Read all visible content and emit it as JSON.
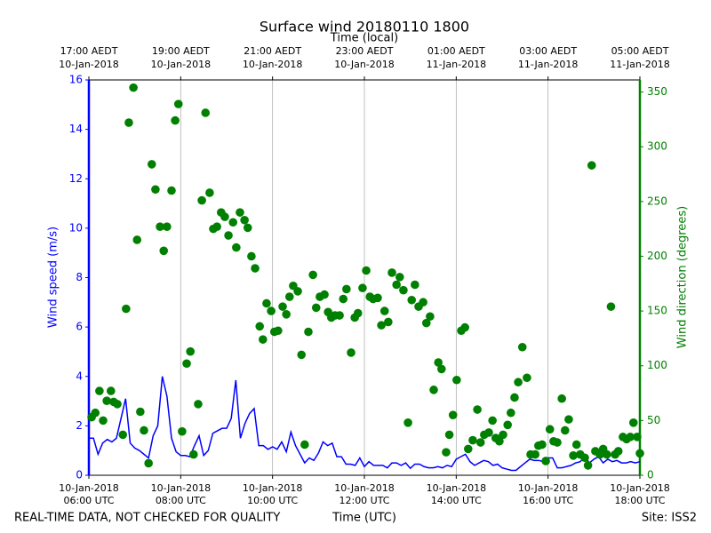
{
  "chart_data": {
    "type": "line",
    "title": "Surface wind 20180110 1800",
    "xlabel": "Time (UTC)",
    "x2label": "Time (local)",
    "ylabel": "Wind speed (m/s)",
    "y2label": "Wind direction (degrees)",
    "xlim": [
      6,
      18
    ],
    "xticks": [
      {
        "value": 6,
        "label": [
          "10-Jan-2018",
          "06:00 UTC"
        ]
      },
      {
        "value": 8,
        "label": [
          "10-Jan-2018",
          "08:00 UTC"
        ]
      },
      {
        "value": 10,
        "label": [
          "10-Jan-2018",
          "10:00 UTC"
        ]
      },
      {
        "value": 12,
        "label": [
          "10-Jan-2018",
          "12:00 UTC"
        ]
      },
      {
        "value": 14,
        "label": [
          "10-Jan-2018",
          "14:00 UTC"
        ]
      },
      {
        "value": 16,
        "label": [
          "10-Jan-2018",
          "16:00 UTC"
        ]
      },
      {
        "value": 18,
        "label": [
          "10-Jan-2018",
          "18:00 UTC"
        ]
      }
    ],
    "x2ticks": [
      {
        "value": 6,
        "label": [
          "17:00 AEDT",
          "10-Jan-2018"
        ]
      },
      {
        "value": 8,
        "label": [
          "19:00 AEDT",
          "10-Jan-2018"
        ]
      },
      {
        "value": 10,
        "label": [
          "21:00 AEDT",
          "10-Jan-2018"
        ]
      },
      {
        "value": 12,
        "label": [
          "23:00 AEDT",
          "10-Jan-2018"
        ]
      },
      {
        "value": 14,
        "label": [
          "01:00 AEDT",
          "11-Jan-2018"
        ]
      },
      {
        "value": 16,
        "label": [
          "03:00 AEDT",
          "11-Jan-2018"
        ]
      },
      {
        "value": 18,
        "label": [
          "05:00 AEDT",
          "11-Jan-2018"
        ]
      }
    ],
    "ylim": [
      0,
      16
    ],
    "yticks": [
      0,
      2,
      4,
      6,
      8,
      10,
      12,
      14,
      16
    ],
    "y2lim": [
      0,
      361
    ],
    "y2ticks": [
      0,
      50,
      100,
      150,
      200,
      250,
      300,
      350
    ],
    "grid": "x",
    "series": [
      {
        "type": "line",
        "color": "#0000ff",
        "x": [
          6.0,
          6.1,
          6.2,
          6.3,
          6.4,
          6.5,
          6.6,
          6.7,
          6.8,
          6.9,
          7.0,
          7.1,
          7.2,
          7.3,
          7.4,
          7.5,
          7.6,
          7.7,
          7.8,
          7.9,
          8.0,
          8.1,
          8.2,
          8.3,
          8.4,
          8.5,
          8.6,
          8.7,
          8.8,
          8.9,
          9.0,
          9.1,
          9.2,
          9.3,
          9.4,
          9.5,
          9.6,
          9.7,
          9.8,
          9.9,
          10.0,
          10.1,
          10.2,
          10.3,
          10.4,
          10.5,
          10.6,
          10.7,
          10.8,
          10.9,
          11.0,
          11.1,
          11.2,
          11.3,
          11.4,
          11.5,
          11.6,
          11.7,
          11.8,
          11.9,
          12.0,
          12.1,
          12.2,
          12.3,
          12.4,
          12.5,
          12.6,
          12.7,
          12.8,
          12.9,
          13.0,
          13.1,
          13.2,
          13.3,
          13.4,
          13.5,
          13.6,
          13.7,
          13.8,
          13.9,
          14.0,
          14.1,
          14.2,
          14.3,
          14.4,
          14.5,
          14.6,
          14.7,
          14.8,
          14.9,
          15.0,
          15.1,
          15.2,
          15.3,
          15.4,
          15.5,
          15.6,
          15.7,
          15.8,
          15.9,
          16.0,
          16.1,
          16.2,
          16.3,
          16.4,
          16.5,
          16.6,
          16.7,
          16.8,
          16.9,
          17.0,
          17.1,
          17.2,
          17.3,
          17.4,
          17.5,
          17.6,
          17.7,
          17.8,
          17.9,
          18.0
        ],
        "values": [
          1.5,
          1.5,
          0.85,
          1.3,
          1.45,
          1.35,
          1.5,
          2.3,
          3.1,
          1.3,
          1.1,
          1.0,
          0.85,
          0.7,
          1.6,
          2.0,
          4.0,
          3.2,
          1.5,
          0.95,
          0.8,
          0.8,
          0.75,
          1.2,
          1.6,
          0.8,
          1.0,
          1.7,
          1.8,
          1.9,
          1.9,
          2.3,
          3.85,
          1.5,
          2.1,
          2.5,
          2.7,
          1.2,
          1.2,
          1.05,
          1.15,
          1.05,
          1.35,
          0.95,
          1.75,
          1.2,
          0.85,
          0.5,
          0.7,
          0.6,
          0.9,
          1.35,
          1.2,
          1.3,
          0.75,
          0.75,
          0.45,
          0.45,
          0.4,
          0.7,
          0.35,
          0.55,
          0.4,
          0.4,
          0.4,
          0.3,
          0.5,
          0.5,
          0.4,
          0.5,
          0.28,
          0.45,
          0.45,
          0.35,
          0.3,
          0.3,
          0.35,
          0.3,
          0.4,
          0.35,
          0.65,
          0.75,
          0.85,
          0.55,
          0.4,
          0.5,
          0.6,
          0.55,
          0.4,
          0.45,
          0.3,
          0.25,
          0.2,
          0.2,
          0.35,
          0.5,
          0.65,
          0.6,
          0.6,
          0.55,
          0.7,
          0.7,
          0.3,
          0.3,
          0.35,
          0.4,
          0.5,
          0.55,
          0.75,
          0.5,
          0.65,
          0.75,
          0.5,
          0.65,
          0.55,
          0.6,
          0.5,
          0.5,
          0.55,
          0.5,
          0.55
        ]
      },
      {
        "type": "scatter",
        "color": "#008000",
        "axis": "y2",
        "x": [
          6.06,
          6.14,
          6.23,
          6.31,
          6.39,
          6.48,
          6.54,
          6.62,
          6.74,
          6.81,
          6.87,
          6.97,
          7.05,
          7.12,
          7.2,
          7.3,
          7.37,
          7.45,
          7.55,
          7.63,
          7.7,
          7.8,
          7.88,
          7.95,
          8.03,
          8.13,
          8.21,
          8.28,
          8.38,
          8.46,
          8.54,
          8.63,
          8.71,
          8.79,
          8.88,
          8.96,
          9.04,
          9.14,
          9.21,
          9.29,
          9.39,
          9.46,
          9.54,
          9.62,
          9.72,
          9.79,
          9.87,
          9.97,
          10.04,
          10.12,
          10.22,
          10.3,
          10.37,
          10.45,
          10.55,
          10.63,
          10.7,
          10.78,
          10.88,
          10.95,
          11.03,
          11.13,
          11.21,
          11.28,
          11.36,
          11.46,
          11.54,
          11.61,
          11.71,
          11.79,
          11.86,
          11.96,
          12.04,
          12.12,
          12.19,
          12.29,
          12.37,
          12.44,
          12.52,
          12.6,
          12.7,
          12.77,
          12.85,
          12.95,
          13.03,
          13.1,
          13.18,
          13.28,
          13.35,
          13.43,
          13.51,
          13.61,
          13.68,
          13.78,
          13.85,
          13.93,
          14.01,
          14.11,
          14.19,
          14.26,
          14.36,
          14.46,
          14.53,
          14.61,
          14.71,
          14.79,
          14.86,
          14.94,
          15.02,
          15.12,
          15.19,
          15.27,
          15.35,
          15.44,
          15.54,
          15.62,
          15.72,
          15.79,
          15.87,
          15.95,
          16.04,
          16.12,
          16.2,
          16.3,
          16.37,
          16.45,
          16.55,
          16.62,
          16.7,
          16.8,
          16.87,
          16.95,
          17.03,
          17.13,
          17.2,
          17.28,
          17.37,
          17.46,
          17.53,
          17.63,
          17.71,
          17.79,
          17.86,
          17.94,
          18.0
        ],
        "values": [
          53,
          57,
          77,
          50,
          68,
          77,
          67,
          65,
          37,
          152,
          322,
          354,
          215,
          58,
          41,
          11,
          284,
          261,
          227,
          205,
          227,
          260,
          324,
          339,
          40,
          102,
          113,
          19,
          65,
          251,
          331,
          258,
          225,
          227,
          240,
          236,
          219,
          231,
          208,
          240,
          233,
          226,
          200,
          189,
          136,
          124,
          157,
          150,
          131,
          132,
          154,
          147,
          163,
          173,
          168,
          110,
          28,
          131,
          183,
          153,
          163,
          165,
          149,
          144,
          146,
          146,
          161,
          170,
          112,
          144,
          148,
          171,
          187,
          163,
          161,
          162,
          137,
          150,
          140,
          185,
          174,
          181,
          169,
          48,
          160,
          174,
          154,
          158,
          139,
          145,
          78,
          103,
          97,
          21,
          37,
          55,
          87,
          132,
          135,
          24,
          32,
          60,
          30,
          37,
          39,
          50,
          34,
          31,
          37,
          46,
          57,
          71,
          85,
          117,
          89,
          19,
          19,
          27,
          28,
          13,
          42,
          31,
          30,
          70,
          41,
          51,
          18,
          28,
          19,
          16,
          9,
          283,
          22,
          19,
          24,
          19,
          154,
          19,
          22,
          35,
          33,
          35,
          48,
          35,
          20
        ]
      }
    ]
  },
  "footer": {
    "note": "REAL-TIME DATA, NOT CHECKED FOR QUALITY",
    "site": "Site: ISS2"
  }
}
